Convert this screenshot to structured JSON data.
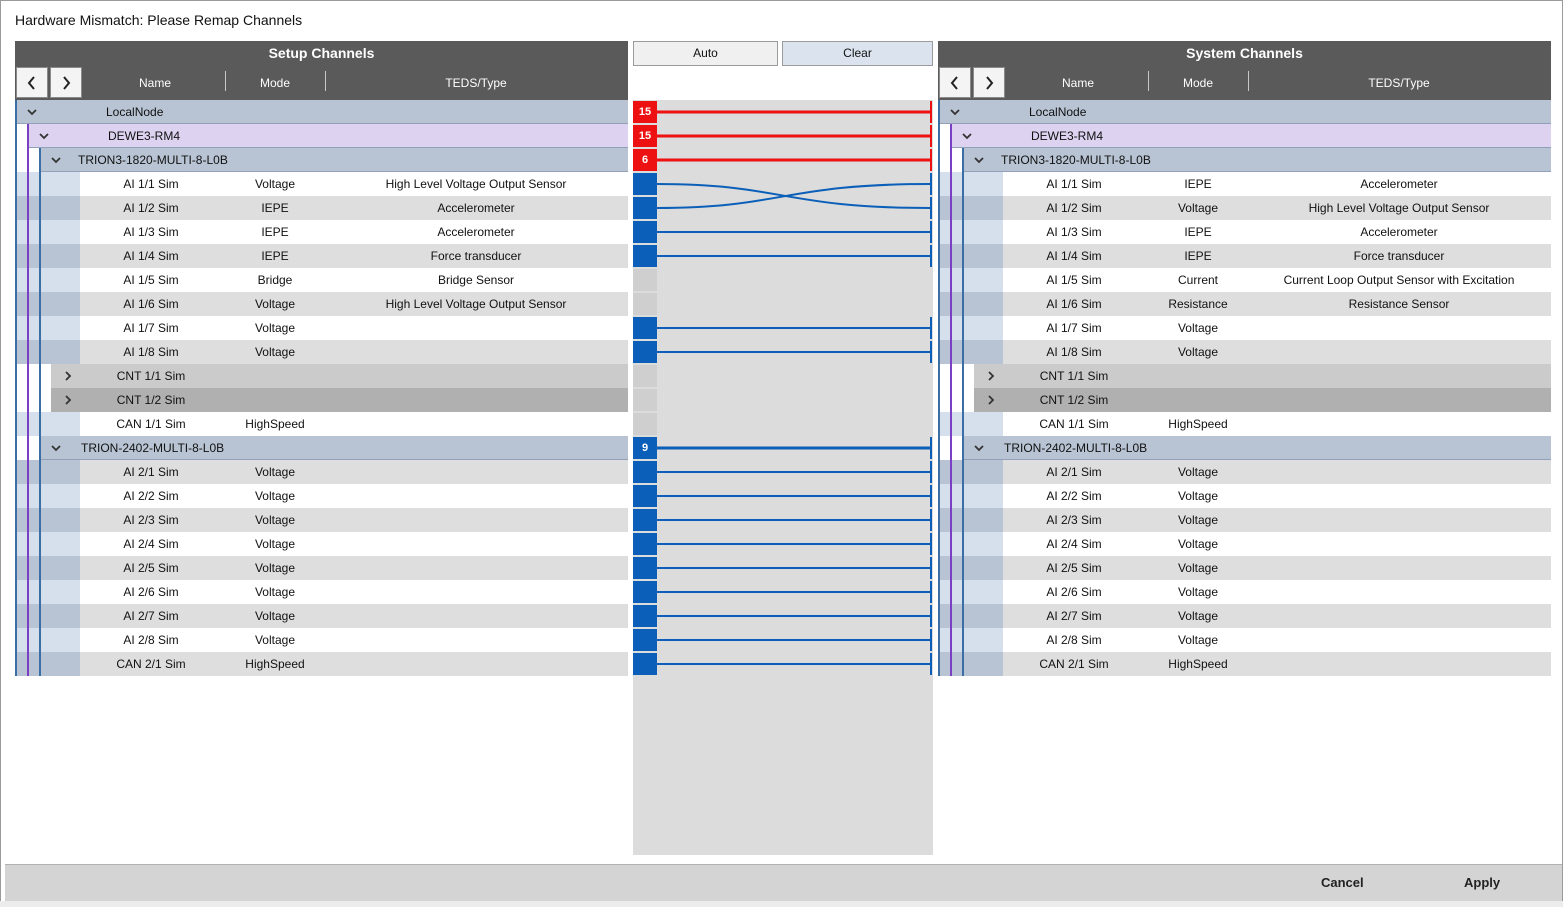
{
  "dialog": {
    "title": "Hardware Mismatch: Please Remap Channels",
    "auto_label": "Auto",
    "clear_label": "Clear",
    "cancel_label": "Cancel",
    "apply_label": "Apply"
  },
  "setup": {
    "title": "Setup Channels",
    "col_name": "Name",
    "col_mode": "Mode",
    "col_teds": "TEDS/Type",
    "rows": [
      {
        "type": "node",
        "level": 0,
        "name": "LocalNode",
        "mode": "",
        "teds": ""
      },
      {
        "type": "node",
        "level": 1,
        "name": "DEWE3-RM4",
        "mode": "",
        "teds": ""
      },
      {
        "type": "node",
        "level": 2,
        "name": "TRION3-1820-MULTI-8-L0B",
        "mode": "",
        "teds": ""
      },
      {
        "type": "ch",
        "name": "AI 1/1 Sim",
        "mode": "Voltage",
        "teds": "High Level Voltage Output Sensor"
      },
      {
        "type": "ch",
        "name": "AI 1/2 Sim",
        "mode": "IEPE",
        "teds": "Accelerometer"
      },
      {
        "type": "ch",
        "name": "AI 1/3 Sim",
        "mode": "IEPE",
        "teds": "Accelerometer"
      },
      {
        "type": "ch",
        "name": "AI 1/4 Sim",
        "mode": "IEPE",
        "teds": "Force transducer"
      },
      {
        "type": "ch",
        "name": "AI 1/5 Sim",
        "mode": "Bridge",
        "teds": "Bridge Sensor"
      },
      {
        "type": "ch",
        "name": "AI 1/6 Sim",
        "mode": "Voltage",
        "teds": "High Level Voltage Output Sensor"
      },
      {
        "type": "ch",
        "name": "AI 1/7 Sim",
        "mode": "Voltage",
        "teds": ""
      },
      {
        "type": "ch",
        "name": "AI 1/8 Sim",
        "mode": "Voltage",
        "teds": ""
      },
      {
        "type": "cnt",
        "name": "CNT 1/1 Sim",
        "mode": "",
        "teds": ""
      },
      {
        "type": "cnt",
        "name": "CNT 1/2 Sim",
        "mode": "",
        "teds": ""
      },
      {
        "type": "ch",
        "name": "CAN 1/1 Sim",
        "mode": "HighSpeed",
        "teds": ""
      },
      {
        "type": "node",
        "level": 2,
        "name": "TRION-2402-MULTI-8-L0B",
        "mode": "",
        "teds": ""
      },
      {
        "type": "ch",
        "name": "AI 2/1 Sim",
        "mode": "Voltage",
        "teds": ""
      },
      {
        "type": "ch",
        "name": "AI 2/2 Sim",
        "mode": "Voltage",
        "teds": ""
      },
      {
        "type": "ch",
        "name": "AI 2/3 Sim",
        "mode": "Voltage",
        "teds": ""
      },
      {
        "type": "ch",
        "name": "AI 2/4 Sim",
        "mode": "Voltage",
        "teds": ""
      },
      {
        "type": "ch",
        "name": "AI 2/5 Sim",
        "mode": "Voltage",
        "teds": ""
      },
      {
        "type": "ch",
        "name": "AI 2/6 Sim",
        "mode": "Voltage",
        "teds": ""
      },
      {
        "type": "ch",
        "name": "AI 2/7 Sim",
        "mode": "Voltage",
        "teds": ""
      },
      {
        "type": "ch",
        "name": "AI 2/8 Sim",
        "mode": "Voltage",
        "teds": ""
      },
      {
        "type": "ch",
        "name": "CAN 2/1 Sim",
        "mode": "HighSpeed",
        "teds": ""
      }
    ]
  },
  "system": {
    "title": "System Channels",
    "col_name": "Name",
    "col_mode": "Mode",
    "col_teds": "TEDS/Type",
    "rows": [
      {
        "type": "node",
        "level": 0,
        "name": "LocalNode",
        "mode": "",
        "teds": ""
      },
      {
        "type": "node",
        "level": 1,
        "name": "DEWE3-RM4",
        "mode": "",
        "teds": ""
      },
      {
        "type": "node",
        "level": 2,
        "name": "TRION3-1820-MULTI-8-L0B",
        "mode": "",
        "teds": ""
      },
      {
        "type": "ch",
        "name": "AI 1/1 Sim",
        "mode": "IEPE",
        "teds": "Accelerometer"
      },
      {
        "type": "ch",
        "name": "AI 1/2 Sim",
        "mode": "Voltage",
        "teds": "High Level Voltage Output Sensor"
      },
      {
        "type": "ch",
        "name": "AI 1/3 Sim",
        "mode": "IEPE",
        "teds": "Accelerometer"
      },
      {
        "type": "ch",
        "name": "AI 1/4 Sim",
        "mode": "IEPE",
        "teds": "Force transducer"
      },
      {
        "type": "ch",
        "name": "AI 1/5 Sim",
        "mode": "Current",
        "teds": "Current Loop Output Sensor with Excitation"
      },
      {
        "type": "ch",
        "name": "AI 1/6 Sim",
        "mode": "Resistance",
        "teds": "Resistance Sensor"
      },
      {
        "type": "ch",
        "name": "AI 1/7 Sim",
        "mode": "Voltage",
        "teds": ""
      },
      {
        "type": "ch",
        "name": "AI 1/8 Sim",
        "mode": "Voltage",
        "teds": ""
      },
      {
        "type": "cnt",
        "name": "CNT 1/1 Sim",
        "mode": "",
        "teds": ""
      },
      {
        "type": "cnt",
        "name": "CNT 1/2 Sim",
        "mode": "",
        "teds": ""
      },
      {
        "type": "ch",
        "name": "CAN 1/1 Sim",
        "mode": "HighSpeed",
        "teds": ""
      },
      {
        "type": "node",
        "level": 2,
        "name": "TRION-2402-MULTI-8-L0B",
        "mode": "",
        "teds": ""
      },
      {
        "type": "ch",
        "name": "AI 2/1 Sim",
        "mode": "Voltage",
        "teds": ""
      },
      {
        "type": "ch",
        "name": "AI 2/2 Sim",
        "mode": "Voltage",
        "teds": ""
      },
      {
        "type": "ch",
        "name": "AI 2/3 Sim",
        "mode": "Voltage",
        "teds": ""
      },
      {
        "type": "ch",
        "name": "AI 2/4 Sim",
        "mode": "Voltage",
        "teds": ""
      },
      {
        "type": "ch",
        "name": "AI 2/5 Sim",
        "mode": "Voltage",
        "teds": ""
      },
      {
        "type": "ch",
        "name": "AI 2/6 Sim",
        "mode": "Voltage",
        "teds": ""
      },
      {
        "type": "ch",
        "name": "AI 2/7 Sim",
        "mode": "Voltage",
        "teds": ""
      },
      {
        "type": "ch",
        "name": "AI 2/8 Sim",
        "mode": "Voltage",
        "teds": ""
      },
      {
        "type": "ch",
        "name": "CAN 2/1 Sim",
        "mode": "HighSpeed",
        "teds": ""
      }
    ]
  },
  "mapping": {
    "badges": [
      {
        "row": 0,
        "count": "15",
        "status": "mismatch"
      },
      {
        "row": 1,
        "count": "15",
        "status": "mismatch"
      },
      {
        "row": 2,
        "count": "6",
        "status": "mismatch"
      },
      {
        "row": 14,
        "count": "9",
        "status": "ok"
      }
    ],
    "connections": [
      {
        "from": 0,
        "to": 0,
        "status": "mismatch"
      },
      {
        "from": 1,
        "to": 1,
        "status": "mismatch"
      },
      {
        "from": 2,
        "to": 2,
        "status": "mismatch"
      },
      {
        "from": 3,
        "to": 4,
        "status": "ok"
      },
      {
        "from": 4,
        "to": 3,
        "status": "ok"
      },
      {
        "from": 5,
        "to": 5,
        "status": "ok"
      },
      {
        "from": 6,
        "to": 6,
        "status": "ok"
      },
      {
        "from": 9,
        "to": 9,
        "status": "ok"
      },
      {
        "from": 10,
        "to": 10,
        "status": "ok"
      },
      {
        "from": 14,
        "to": 14,
        "status": "ok"
      },
      {
        "from": 15,
        "to": 15,
        "status": "ok"
      },
      {
        "from": 16,
        "to": 16,
        "status": "ok"
      },
      {
        "from": 17,
        "to": 17,
        "status": "ok"
      },
      {
        "from": 18,
        "to": 18,
        "status": "ok"
      },
      {
        "from": 19,
        "to": 19,
        "status": "ok"
      },
      {
        "from": 20,
        "to": 20,
        "status": "ok"
      },
      {
        "from": 21,
        "to": 21,
        "status": "ok"
      },
      {
        "from": 22,
        "to": 22,
        "status": "ok"
      },
      {
        "from": 23,
        "to": 23,
        "status": "ok"
      }
    ],
    "unmapped_rows": [
      7,
      8,
      11,
      12,
      13
    ]
  },
  "colors": {
    "mismatch": "#ee1111",
    "ok": "#0b5fb8",
    "node_local": "#b8c4d4",
    "node_device": "#ddd2ef",
    "node_module": "#b8c4d4",
    "row_even": "#ffffff",
    "row_odd": "#dedede",
    "cnt_1": "#cbcbcb",
    "cnt_2": "#b0b0b0"
  }
}
